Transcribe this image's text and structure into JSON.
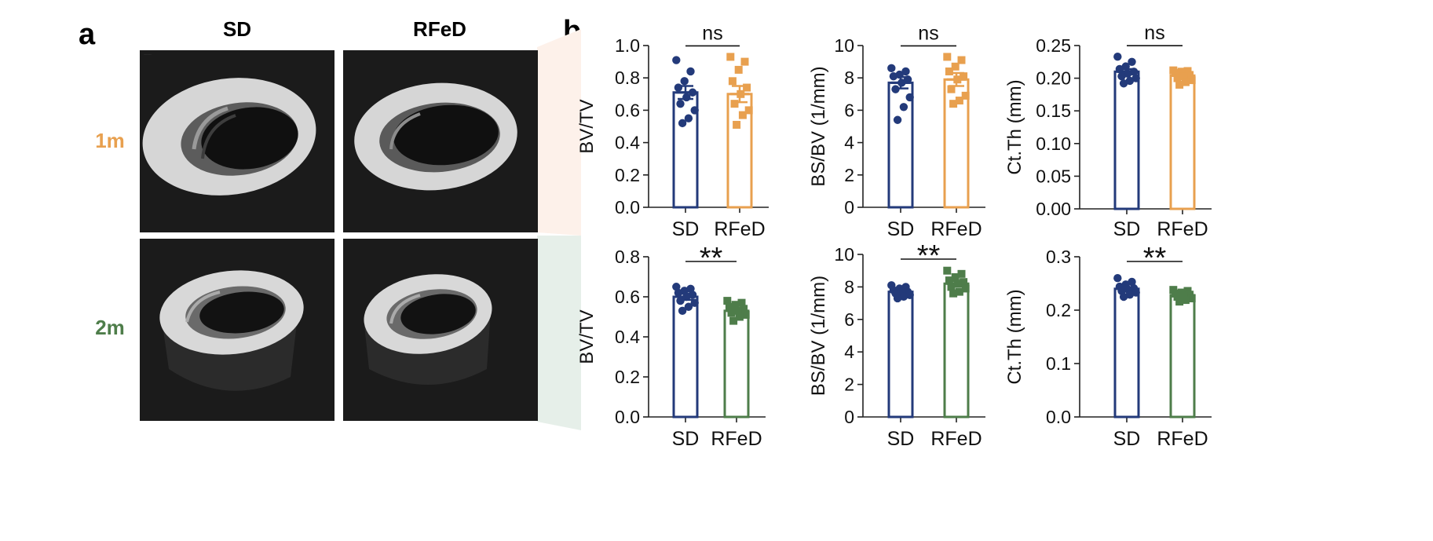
{
  "panel_labels": {
    "a": "a",
    "b": "b"
  },
  "panel_a": {
    "column_headers": [
      "SD",
      "RFeD"
    ],
    "row_labels": [
      "1m",
      "2m"
    ],
    "row_label_colors": [
      "#E8A04F",
      "#4E7D4A"
    ],
    "image_descriptions": [
      "micro-CT cortical bone ring 1m SD",
      "micro-CT cortical bone ring 1m RFeD",
      "micro-CT cortical bone ring 2m SD",
      "micro-CT cortical bone ring 2m RFeD"
    ]
  },
  "colors": {
    "sd": "#233A7A",
    "rfed_1m": "#E8A04F",
    "rfed_2m": "#4E7D4A",
    "axis": "#222222",
    "band_1m": "#FDF1EA",
    "band_2m": "#E6EFE9",
    "image_bg": "#1b1b1b",
    "bone": "#d6d6d6"
  },
  "chart_data": [
    {
      "type": "bar",
      "id": "bvtv_1m",
      "ylabel": "BV/TV",
      "categories": [
        "SD",
        "RFeD"
      ],
      "ylim": [
        0,
        1.0
      ],
      "yticks": [
        0.0,
        0.2,
        0.4,
        0.6,
        0.8,
        1.0
      ],
      "ytick_labels": [
        "0.0",
        "0.2",
        "0.4",
        "0.6",
        "0.8",
        "1.0"
      ],
      "series": [
        {
          "name": "SD",
          "mean": 0.71,
          "sem": 0.04,
          "marker": "circle",
          "points": [
            0.91,
            0.84,
            0.78,
            0.74,
            0.71,
            0.68,
            0.64,
            0.6,
            0.55,
            0.52
          ]
        },
        {
          "name": "RFeD",
          "mean": 0.7,
          "sem": 0.05,
          "marker": "square",
          "points": [
            0.93,
            0.9,
            0.85,
            0.78,
            0.74,
            0.7,
            0.64,
            0.6,
            0.57,
            0.51
          ]
        }
      ],
      "significance": "ns"
    },
    {
      "type": "bar",
      "id": "bsbv_1m",
      "ylabel": "BS/BV (1/mm)",
      "categories": [
        "SD",
        "RFeD"
      ],
      "ylim": [
        0,
        10
      ],
      "yticks": [
        0,
        2,
        4,
        6,
        8,
        10
      ],
      "ytick_labels": [
        "0",
        "2",
        "4",
        "6",
        "8",
        "10"
      ],
      "series": [
        {
          "name": "SD",
          "mean": 7.7,
          "sem": 0.35,
          "marker": "circle",
          "points": [
            8.6,
            8.4,
            8.2,
            8.1,
            7.9,
            7.7,
            7.3,
            6.8,
            6.2,
            5.4
          ]
        },
        {
          "name": "RFeD",
          "mean": 7.9,
          "sem": 0.4,
          "marker": "square",
          "points": [
            9.3,
            9.1,
            8.7,
            8.4,
            8.1,
            7.9,
            7.3,
            6.9,
            6.6,
            6.4
          ]
        }
      ],
      "significance": "ns"
    },
    {
      "type": "bar",
      "id": "ctth_1m",
      "ylabel": "Ct.Th (mm)",
      "categories": [
        "SD",
        "RFeD"
      ],
      "ylim": [
        0,
        0.25
      ],
      "yticks": [
        0.0,
        0.05,
        0.1,
        0.15,
        0.2,
        0.25
      ],
      "ytick_labels": [
        "0.00",
        "0.05",
        "0.10",
        "0.15",
        "0.20",
        "0.25"
      ],
      "series": [
        {
          "name": "SD",
          "mean": 0.21,
          "sem": 0.004,
          "marker": "circle",
          "points": [
            0.233,
            0.225,
            0.218,
            0.214,
            0.21,
            0.207,
            0.203,
            0.2,
            0.196,
            0.192
          ]
        },
        {
          "name": "RFeD",
          "mean": 0.204,
          "sem": 0.003,
          "marker": "square",
          "points": [
            0.212,
            0.211,
            0.21,
            0.208,
            0.205,
            0.203,
            0.2,
            0.197,
            0.194,
            0.19
          ]
        }
      ],
      "significance": "ns"
    },
    {
      "type": "bar",
      "id": "bvtv_2m",
      "ylabel": "BV/TV",
      "categories": [
        "SD",
        "RFeD"
      ],
      "ylim": [
        0,
        0.8
      ],
      "yticks": [
        0.0,
        0.2,
        0.4,
        0.6,
        0.8
      ],
      "ytick_labels": [
        "0.0",
        "0.2",
        "0.4",
        "0.6",
        "0.8"
      ],
      "series": [
        {
          "name": "SD",
          "mean": 0.6,
          "sem": 0.015,
          "marker": "circle",
          "points": [
            0.65,
            0.64,
            0.63,
            0.62,
            0.61,
            0.6,
            0.58,
            0.57,
            0.55,
            0.53
          ]
        },
        {
          "name": "RFeD",
          "mean": 0.53,
          "sem": 0.012,
          "marker": "square",
          "points": [
            0.58,
            0.57,
            0.56,
            0.55,
            0.54,
            0.53,
            0.52,
            0.51,
            0.5,
            0.48
          ]
        }
      ],
      "significance": "**"
    },
    {
      "type": "bar",
      "id": "bsbv_2m",
      "ylabel": "BS/BV (1/mm)",
      "categories": [
        "SD",
        "RFeD"
      ],
      "ylim": [
        0,
        10
      ],
      "yticks": [
        0,
        2,
        4,
        6,
        8,
        10
      ],
      "ytick_labels": [
        "0",
        "2",
        "4",
        "6",
        "8",
        "10"
      ],
      "series": [
        {
          "name": "SD",
          "mean": 7.7,
          "sem": 0.12,
          "marker": "circle",
          "points": [
            8.1,
            8.0,
            7.9,
            7.8,
            7.7,
            7.7,
            7.6,
            7.5,
            7.4,
            7.3
          ]
        },
        {
          "name": "RFeD",
          "mean": 8.2,
          "sem": 0.17,
          "marker": "square",
          "points": [
            9.0,
            8.8,
            8.6,
            8.4,
            8.3,
            8.2,
            8.0,
            7.9,
            7.7,
            7.6
          ]
        }
      ],
      "significance": "**"
    },
    {
      "type": "bar",
      "id": "ctth_2m",
      "ylabel": "Ct.Th (mm)",
      "categories": [
        "SD",
        "RFeD"
      ],
      "ylim": [
        0,
        0.3
      ],
      "yticks": [
        0.0,
        0.1,
        0.2,
        0.3
      ],
      "ytick_labels": [
        "0.0",
        "0.1",
        "0.2",
        "0.3"
      ],
      "series": [
        {
          "name": "SD",
          "mean": 0.24,
          "sem": 0.003,
          "marker": "circle",
          "points": [
            0.26,
            0.253,
            0.248,
            0.244,
            0.241,
            0.239,
            0.236,
            0.233,
            0.229,
            0.225
          ]
        },
        {
          "name": "RFeD",
          "mean": 0.228,
          "sem": 0.002,
          "marker": "square",
          "points": [
            0.238,
            0.236,
            0.233,
            0.231,
            0.229,
            0.227,
            0.225,
            0.222,
            0.219,
            0.216
          ]
        }
      ],
      "significance": "**"
    }
  ]
}
